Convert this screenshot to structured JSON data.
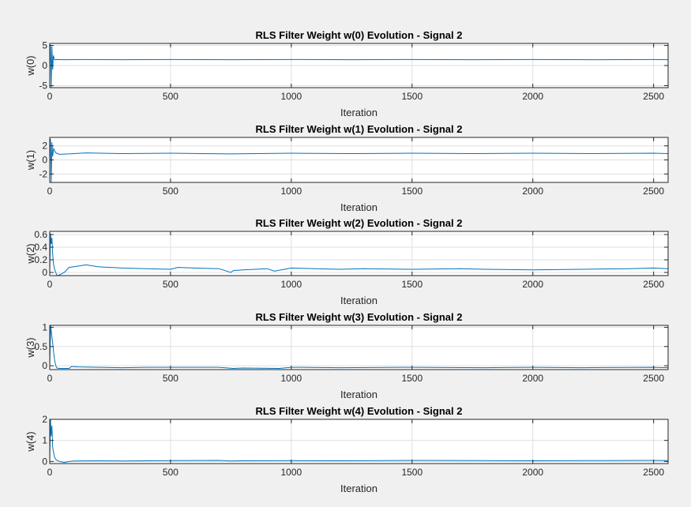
{
  "window": {
    "background": "#f0f0f0"
  },
  "chart_data": [
    {
      "type": "line",
      "title": "RLS Filter Weight w(0) Evolution - Signal 2",
      "xlabel": "Iteration",
      "ylabel": "w(0)",
      "xlim": [
        0,
        2560
      ],
      "ylim": [
        -5.5,
        5.5
      ],
      "xticks": [
        0,
        500,
        1000,
        1500,
        2000,
        2500
      ],
      "yticks": [
        -5,
        0,
        5
      ],
      "grid": true,
      "series": [
        {
          "color": "#0072bd",
          "x": [
            0,
            3,
            6,
            9,
            12,
            15,
            20,
            30,
            60,
            150,
            300,
            500,
            750,
            1000,
            1250,
            1500,
            1750,
            2000,
            2250,
            2500,
            2560
          ],
          "y": [
            0,
            5.2,
            -5.5,
            4.8,
            -1.0,
            2.5,
            1.4,
            1.5,
            1.45,
            1.5,
            1.45,
            1.5,
            1.45,
            1.5,
            1.45,
            1.5,
            1.45,
            1.5,
            1.45,
            1.5,
            1.45
          ]
        }
      ]
    },
    {
      "type": "line",
      "title": "RLS Filter Weight w(1) Evolution - Signal 2",
      "xlabel": "Iteration",
      "ylabel": "w(1)",
      "xlim": [
        0,
        2560
      ],
      "ylim": [
        -3.2,
        3.2
      ],
      "xticks": [
        0,
        500,
        1000,
        1500,
        2000,
        2500
      ],
      "yticks": [
        -2,
        0,
        2
      ],
      "grid": true,
      "series": [
        {
          "color": "#0072bd",
          "x": [
            0,
            3,
            6,
            9,
            12,
            16,
            25,
            40,
            80,
            150,
            300,
            500,
            750,
            1000,
            1250,
            1500,
            1750,
            2000,
            2250,
            2500,
            2560
          ],
          "y": [
            0,
            3.0,
            -3.2,
            2.5,
            0.5,
            1.6,
            1.0,
            0.8,
            0.85,
            1.0,
            0.9,
            0.95,
            0.85,
            0.95,
            0.9,
            0.95,
            0.9,
            0.95,
            0.9,
            0.95,
            0.9
          ]
        }
      ]
    },
    {
      "type": "line",
      "title": "RLS Filter Weight w(2) Evolution - Signal 2",
      "xlabel": "Iteration",
      "ylabel": "w(2)",
      "xlim": [
        0,
        2560
      ],
      "ylim": [
        -0.05,
        0.65
      ],
      "xticks": [
        0,
        500,
        1000,
        1500,
        2000,
        2500
      ],
      "yticks": [
        0,
        0.2,
        0.4,
        0.6
      ],
      "grid": true,
      "series": [
        {
          "color": "#0072bd",
          "x": [
            0,
            3,
            6,
            9,
            12,
            15,
            20,
            30,
            40,
            60,
            80,
            100,
            150,
            200,
            300,
            400,
            500,
            530,
            600,
            700,
            750,
            760,
            800,
            900,
            930,
            1000,
            1100,
            1200,
            1300,
            1500,
            1700,
            1800,
            2000,
            2200,
            2400,
            2500,
            2560
          ],
          "y": [
            0,
            0.62,
            0.45,
            0.55,
            0.3,
            0.15,
            0.05,
            -0.05,
            -0.04,
            0.0,
            0.08,
            0.09,
            0.12,
            0.09,
            0.07,
            0.06,
            0.05,
            0.08,
            0.07,
            0.06,
            0.0,
            0.03,
            0.04,
            0.06,
            0.02,
            0.07,
            0.06,
            0.05,
            0.06,
            0.05,
            0.06,
            0.05,
            0.04,
            0.05,
            0.06,
            0.07,
            0.06
          ]
        }
      ]
    },
    {
      "type": "line",
      "title": "RLS Filter Weight w(3) Evolution - Signal 2",
      "xlabel": "Iteration",
      "ylabel": "w(3)",
      "xlim": [
        0,
        2560
      ],
      "ylim": [
        -0.1,
        1.05
      ],
      "xticks": [
        0,
        500,
        1000,
        1500,
        2000,
        2500
      ],
      "yticks": [
        0,
        0.5,
        1
      ],
      "grid": true,
      "series": [
        {
          "color": "#0072bd",
          "x": [
            0,
            4,
            8,
            12,
            16,
            20,
            25,
            30,
            40,
            60,
            80,
            90,
            120,
            200,
            300,
            400,
            500,
            700,
            760,
            800,
            950,
            1000,
            1200,
            1500,
            1800,
            2000,
            2200,
            2500,
            2560
          ],
          "y": [
            0,
            1.05,
            0.8,
            0.6,
            0.35,
            0.15,
            0.0,
            -0.06,
            -0.07,
            -0.07,
            -0.07,
            -0.02,
            -0.03,
            -0.04,
            -0.05,
            -0.04,
            -0.04,
            -0.04,
            -0.07,
            -0.06,
            -0.07,
            -0.04,
            -0.05,
            -0.04,
            -0.05,
            -0.04,
            -0.05,
            -0.04,
            -0.05
          ]
        }
      ]
    },
    {
      "type": "line",
      "title": "RLS Filter Weight w(4) Evolution - Signal 2",
      "xlabel": "Iteration",
      "ylabel": "w(4)",
      "xlim": [
        0,
        2560
      ],
      "ylim": [
        -0.1,
        2.0
      ],
      "xticks": [
        0,
        500,
        1000,
        1500,
        2000,
        2500
      ],
      "yticks": [
        0,
        1,
        2
      ],
      "grid": true,
      "series": [
        {
          "color": "#0072bd",
          "x": [
            0,
            3,
            6,
            9,
            12,
            16,
            20,
            25,
            30,
            40,
            60,
            80,
            100,
            200,
            300,
            500,
            700,
            750,
            800,
            1000,
            1200,
            1500,
            1800,
            2000,
            2200,
            2500,
            2560
          ],
          "y": [
            0,
            2.0,
            1.2,
            1.7,
            0.7,
            0.4,
            0.2,
            0.1,
            0.05,
            0.0,
            -0.05,
            0.0,
            0.02,
            0.03,
            0.02,
            0.04,
            0.05,
            0.02,
            0.03,
            0.04,
            0.03,
            0.05,
            0.04,
            0.03,
            0.04,
            0.05,
            0.04
          ]
        }
      ]
    }
  ]
}
